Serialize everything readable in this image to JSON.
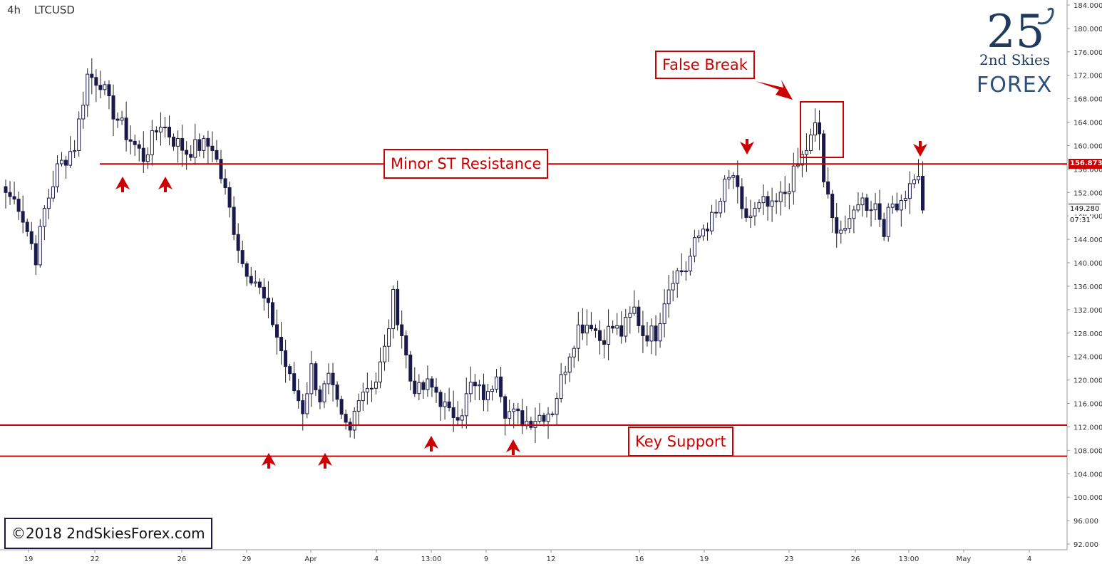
{
  "header": {
    "timeframe": "4h",
    "symbol": "LTCUSD"
  },
  "logo": {
    "mark": "25",
    "subtitle": "2nd Skies",
    "brand": "FOREX"
  },
  "copyright": "©2018 2ndSkiesForex.com",
  "annotations": {
    "resistance_label": "Minor ST Resistance",
    "support_label": "Key Support",
    "false_break_label": "False Break"
  },
  "price_tags": {
    "resistance": "156.873",
    "current": "149.280",
    "countdown": "07:31"
  },
  "colors": {
    "bull": "#ffffff",
    "bear": "#1a1a4a",
    "annotation": "#cc0000",
    "wick": "#222222"
  },
  "chart_data": {
    "type": "candlestick",
    "timeframe": "4h",
    "symbol": "LTCUSD",
    "ylim": [
      90,
      185
    ],
    "y_ticks": [
      "184.000",
      "180.000",
      "176.000",
      "172.000",
      "168.000",
      "164.000",
      "160.000",
      "156.000",
      "152.000",
      "148.000",
      "144.000",
      "140.000",
      "136.000",
      "132.000",
      "128.000",
      "124.000",
      "120.000",
      "116.000",
      "112.000",
      "108.000",
      "104.000",
      "100.000",
      "96.000",
      "92.000"
    ],
    "x_ticks": [
      "19",
      "22",
      "26",
      "29",
      "Apr",
      "4",
      "13:00",
      "9",
      "12",
      "16",
      "19",
      "23",
      "26",
      "13:00",
      "May",
      "4"
    ],
    "levels": {
      "resistance": 156.873,
      "support_upper": 112.3,
      "support_lower": 107.0
    },
    "series_keypoints": [
      [
        0,
        152
      ],
      [
        3,
        150
      ],
      [
        7,
        141
      ],
      [
        9,
        149
      ],
      [
        12,
        156
      ],
      [
        16,
        160
      ],
      [
        19,
        172
      ],
      [
        22,
        171
      ],
      [
        24,
        167
      ],
      [
        28,
        162
      ],
      [
        32,
        158
      ],
      [
        36,
        164
      ],
      [
        39,
        161
      ],
      [
        42,
        159
      ],
      [
        45,
        160
      ],
      [
        48,
        160
      ],
      [
        51,
        152
      ],
      [
        55,
        140
      ],
      [
        58,
        137
      ],
      [
        62,
        130
      ],
      [
        66,
        120
      ],
      [
        69,
        115
      ],
      [
        71,
        122
      ],
      [
        73,
        117
      ],
      [
        75,
        120
      ],
      [
        78,
        113
      ],
      [
        80,
        111
      ],
      [
        82,
        118
      ],
      [
        86,
        120
      ],
      [
        88,
        125
      ],
      [
        90,
        134
      ],
      [
        92,
        128
      ],
      [
        94,
        120
      ],
      [
        96,
        118
      ],
      [
        98,
        119
      ],
      [
        100,
        118
      ],
      [
        103,
        114
      ],
      [
        106,
        115
      ],
      [
        108,
        119
      ],
      [
        112,
        117
      ],
      [
        114,
        122
      ],
      [
        116,
        115
      ],
      [
        118,
        114
      ],
      [
        121,
        113
      ],
      [
        124,
        114
      ],
      [
        127,
        115
      ],
      [
        129,
        120
      ],
      [
        131,
        125
      ],
      [
        133,
        129
      ],
      [
        136,
        130
      ],
      [
        138,
        127
      ],
      [
        141,
        129
      ],
      [
        143,
        128
      ],
      [
        146,
        132
      ],
      [
        148,
        128
      ],
      [
        151,
        128
      ],
      [
        153,
        134
      ],
      [
        155,
        138
      ],
      [
        158,
        139
      ],
      [
        160,
        143
      ],
      [
        162,
        146
      ],
      [
        165,
        148
      ],
      [
        167,
        153
      ],
      [
        169,
        155
      ],
      [
        171,
        148
      ],
      [
        173,
        148
      ],
      [
        176,
        150
      ],
      [
        178,
        149
      ],
      [
        181,
        152
      ],
      [
        183,
        155
      ],
      [
        185,
        158
      ],
      [
        187,
        161
      ],
      [
        188,
        163
      ],
      [
        189,
        162
      ],
      [
        190,
        154
      ],
      [
        192,
        147
      ],
      [
        194,
        146
      ],
      [
        196,
        146
      ],
      [
        198,
        151
      ],
      [
        200,
        150
      ],
      [
        202,
        150
      ],
      [
        204,
        146
      ],
      [
        206,
        150
      ],
      [
        208,
        151
      ],
      [
        210,
        153
      ],
      [
        211,
        155
      ],
      [
        212,
        154
      ],
      [
        213,
        149
      ]
    ]
  }
}
